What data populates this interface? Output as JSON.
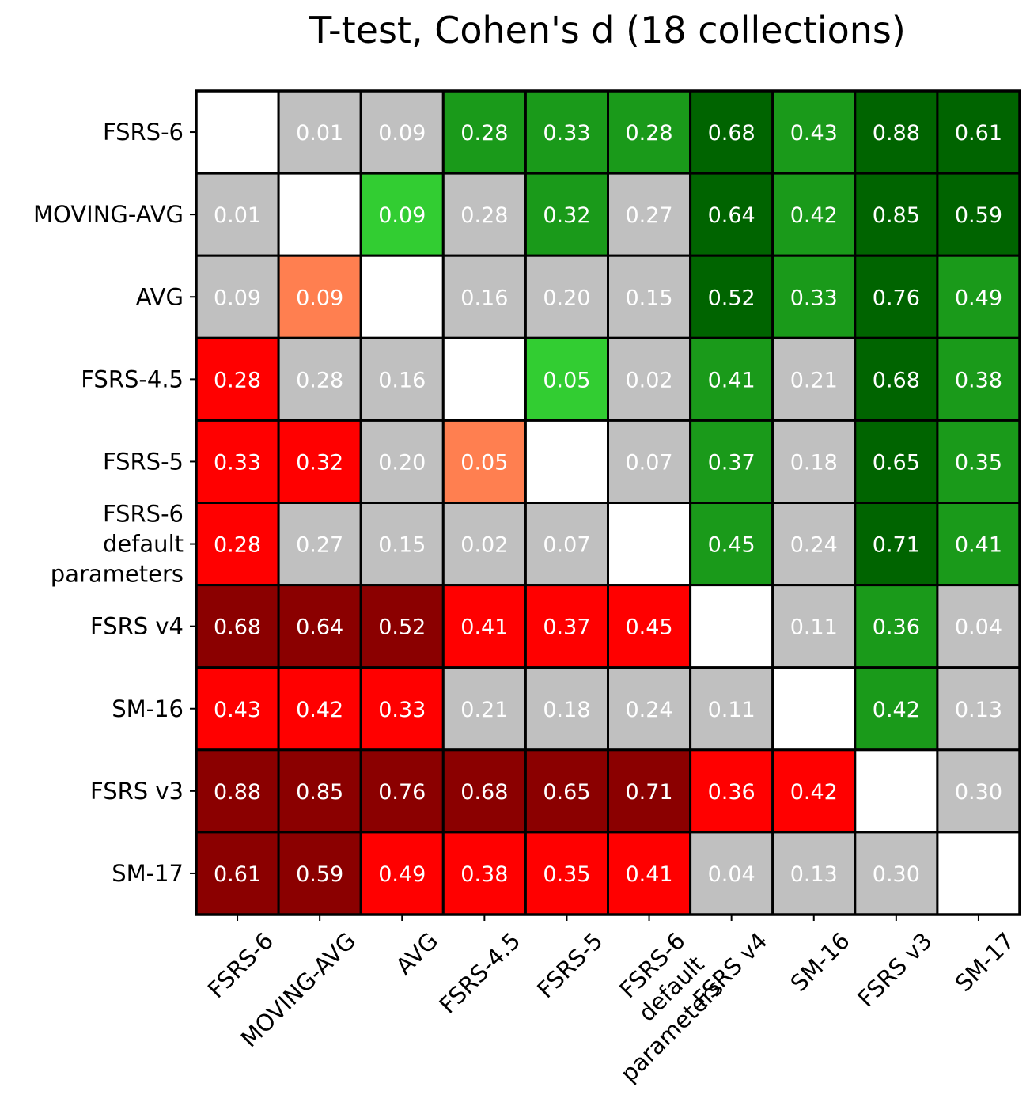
{
  "chart_data": {
    "type": "heatmap",
    "title": "T-test, Cohen's d (18 collections)",
    "xlabel": "",
    "ylabel": "",
    "row_labels": [
      [
        "FSRS-6"
      ],
      [
        "MOVING-AVG"
      ],
      [
        "AVG"
      ],
      [
        "FSRS-4.5"
      ],
      [
        "FSRS-5"
      ],
      [
        "FSRS-6",
        "default",
        "parameters"
      ],
      [
        "FSRS v4"
      ],
      [
        "SM-16"
      ],
      [
        "FSRS v3"
      ],
      [
        "SM-17"
      ]
    ],
    "col_labels": [
      [
        "FSRS-6"
      ],
      [
        "MOVING-AVG"
      ],
      [
        "AVG"
      ],
      [
        "FSRS-4.5"
      ],
      [
        "FSRS-5"
      ],
      [
        "FSRS-6",
        "default",
        "parameters"
      ],
      [
        "FSRS v4"
      ],
      [
        "SM-16"
      ],
      [
        "FSRS v3"
      ],
      [
        "SM-17"
      ]
    ],
    "values": [
      [
        null,
        "0.01",
        "0.09",
        "0.28",
        "0.33",
        "0.28",
        "0.68",
        "0.43",
        "0.88",
        "0.61"
      ],
      [
        "0.01",
        null,
        "0.09",
        "0.28",
        "0.32",
        "0.27",
        "0.64",
        "0.42",
        "0.85",
        "0.59"
      ],
      [
        "0.09",
        "0.09",
        null,
        "0.16",
        "0.20",
        "0.15",
        "0.52",
        "0.33",
        "0.76",
        "0.49"
      ],
      [
        "0.28",
        "0.28",
        "0.16",
        null,
        "0.05",
        "0.02",
        "0.41",
        "0.21",
        "0.68",
        "0.38"
      ],
      [
        "0.33",
        "0.32",
        "0.20",
        "0.05",
        null,
        "0.07",
        "0.37",
        "0.18",
        "0.65",
        "0.35"
      ],
      [
        "0.28",
        "0.27",
        "0.15",
        "0.02",
        "0.07",
        null,
        "0.45",
        "0.24",
        "0.71",
        "0.41"
      ],
      [
        "0.68",
        "0.64",
        "0.52",
        "0.41",
        "0.37",
        "0.45",
        null,
        "0.11",
        "0.36",
        "0.04"
      ],
      [
        "0.43",
        "0.42",
        "0.33",
        "0.21",
        "0.18",
        "0.24",
        "0.11",
        null,
        "0.42",
        "0.13"
      ],
      [
        "0.88",
        "0.85",
        "0.76",
        "0.68",
        "0.65",
        "0.71",
        "0.36",
        "0.42",
        null,
        "0.30"
      ],
      [
        "0.61",
        "0.59",
        "0.49",
        "0.38",
        "0.35",
        "0.41",
        "0.04",
        "0.13",
        "0.30",
        null
      ]
    ],
    "cell_colors": [
      [
        "#ffffff",
        "#c0c0c0",
        "#c0c0c0",
        "#1a9a1a",
        "#1a9a1a",
        "#1a9a1a",
        "#006400",
        "#1a9a1a",
        "#006400",
        "#006400"
      ],
      [
        "#c0c0c0",
        "#ffffff",
        "#32cd32",
        "#c0c0c0",
        "#1a9a1a",
        "#c0c0c0",
        "#006400",
        "#1a9a1a",
        "#006400",
        "#006400"
      ],
      [
        "#c0c0c0",
        "#ff7f50",
        "#ffffff",
        "#c0c0c0",
        "#c0c0c0",
        "#c0c0c0",
        "#006400",
        "#1a9a1a",
        "#006400",
        "#1a9a1a"
      ],
      [
        "#ff0000",
        "#c0c0c0",
        "#c0c0c0",
        "#ffffff",
        "#32cd32",
        "#c0c0c0",
        "#1a9a1a",
        "#c0c0c0",
        "#006400",
        "#1a9a1a"
      ],
      [
        "#ff0000",
        "#ff0000",
        "#c0c0c0",
        "#ff7f50",
        "#ffffff",
        "#c0c0c0",
        "#1a9a1a",
        "#c0c0c0",
        "#006400",
        "#1a9a1a"
      ],
      [
        "#ff0000",
        "#c0c0c0",
        "#c0c0c0",
        "#c0c0c0",
        "#c0c0c0",
        "#ffffff",
        "#1a9a1a",
        "#c0c0c0",
        "#006400",
        "#1a9a1a"
      ],
      [
        "#8b0000",
        "#8b0000",
        "#8b0000",
        "#ff0000",
        "#ff0000",
        "#ff0000",
        "#ffffff",
        "#c0c0c0",
        "#1a9a1a",
        "#c0c0c0"
      ],
      [
        "#ff0000",
        "#ff0000",
        "#ff0000",
        "#c0c0c0",
        "#c0c0c0",
        "#c0c0c0",
        "#c0c0c0",
        "#ffffff",
        "#1a9a1a",
        "#c0c0c0"
      ],
      [
        "#8b0000",
        "#8b0000",
        "#8b0000",
        "#8b0000",
        "#8b0000",
        "#8b0000",
        "#ff0000",
        "#ff0000",
        "#ffffff",
        "#c0c0c0"
      ],
      [
        "#8b0000",
        "#8b0000",
        "#ff0000",
        "#ff0000",
        "#ff0000",
        "#ff0000",
        "#c0c0c0",
        "#c0c0c0",
        "#c0c0c0",
        "#ffffff"
      ]
    ],
    "grid": true,
    "legend": "none",
    "colors": {
      "dark_green": "#006400",
      "green": "#1a9a1a",
      "light_green": "#32cd32",
      "grey": "#c0c0c0",
      "coral": "#ff7f50",
      "red": "#ff0000",
      "dark_red": "#8b0000",
      "diagonal": "#ffffff",
      "cell_text": "#ffffff"
    }
  }
}
